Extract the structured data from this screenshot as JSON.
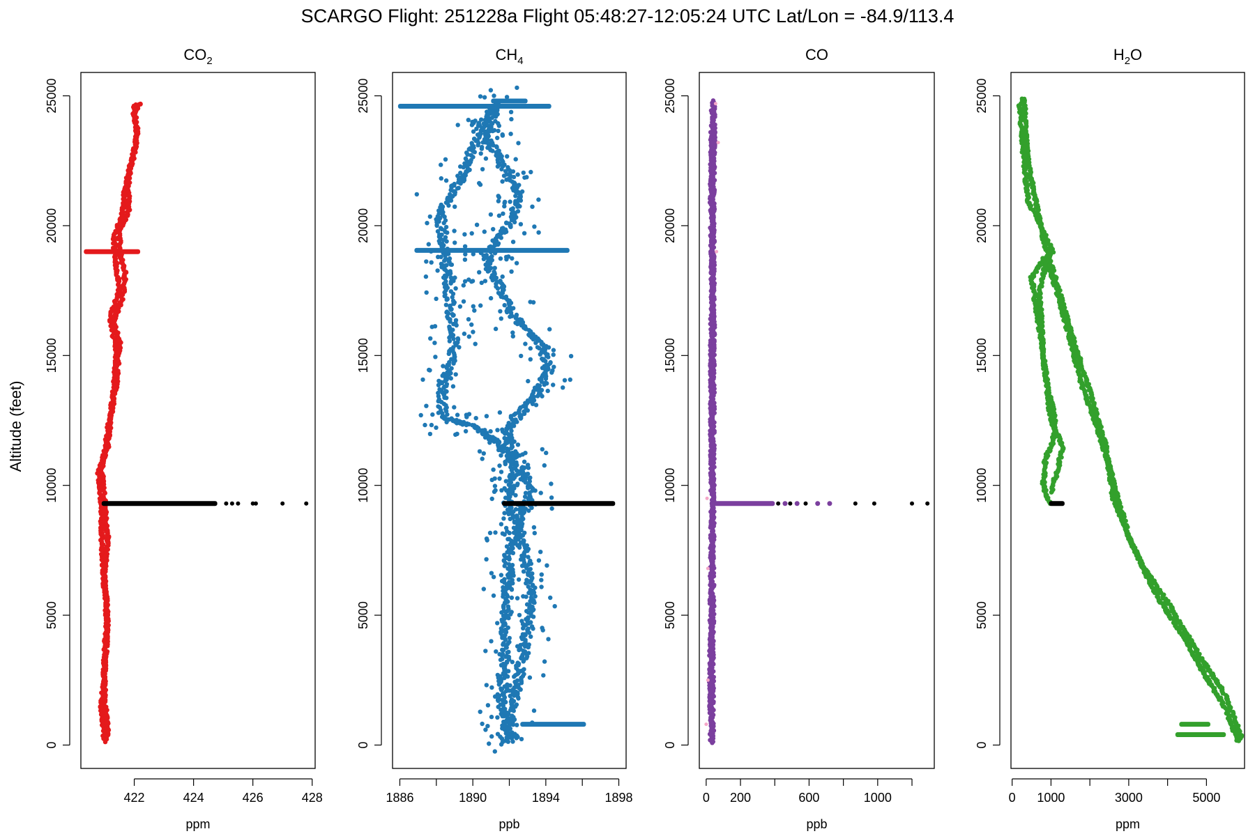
{
  "title": "SCARGO Flight: 251228a  Flight  05:48:27-12:05:24 UTC  Lat/Lon = -84.9/113.4",
  "ylabel": "Altitude (feet)",
  "chart_data": [
    {
      "type": "scatter",
      "title_main": "CO",
      "title_sub": "2",
      "xlabel": "ppm",
      "xlim": [
        420.2,
        428.1
      ],
      "ylim": [
        -900,
        25900
      ],
      "xticks": [
        422,
        424,
        426,
        428
      ],
      "xtick_labels": [
        "422",
        "424",
        "426",
        "428"
      ],
      "yticks": [
        0,
        5000,
        10000,
        15000,
        20000,
        25000
      ],
      "ytick_labels": [
        "0",
        "5000",
        "10000",
        "15000",
        "20000",
        "25000"
      ],
      "color": "#e41a1c",
      "profile": [
        {
          "x": 421.0,
          "y": 100
        },
        {
          "x": 420.9,
          "y": 1500
        },
        {
          "x": 421.0,
          "y": 3000
        },
        {
          "x": 421.1,
          "y": 4500
        },
        {
          "x": 421.0,
          "y": 6000
        },
        {
          "x": 420.9,
          "y": 8000
        },
        {
          "x": 420.9,
          "y": 9300
        },
        {
          "x": 420.8,
          "y": 10500
        },
        {
          "x": 421.1,
          "y": 11500
        },
        {
          "x": 421.2,
          "y": 12500
        },
        {
          "x": 421.4,
          "y": 14000
        },
        {
          "x": 421.5,
          "y": 15500
        },
        {
          "x": 421.3,
          "y": 16300
        },
        {
          "x": 421.6,
          "y": 17200
        },
        {
          "x": 421.7,
          "y": 18200
        },
        {
          "x": 421.5,
          "y": 19000
        },
        {
          "x": 421.5,
          "y": 19800
        },
        {
          "x": 421.8,
          "y": 20500
        },
        {
          "x": 421.8,
          "y": 21800
        },
        {
          "x": 422.0,
          "y": 22800
        },
        {
          "x": 422.1,
          "y": 23600
        },
        {
          "x": 422.0,
          "y": 24300
        },
        {
          "x": 422.2,
          "y": 24700
        },
        {
          "x": 422.0,
          "y": 24600
        },
        {
          "x": 422.1,
          "y": 23400
        },
        {
          "x": 421.9,
          "y": 22400
        },
        {
          "x": 421.7,
          "y": 21500
        },
        {
          "x": 421.6,
          "y": 20400
        },
        {
          "x": 421.3,
          "y": 19500
        },
        {
          "x": 421.4,
          "y": 18400
        },
        {
          "x": 421.5,
          "y": 17500
        },
        {
          "x": 421.2,
          "y": 16500
        },
        {
          "x": 421.4,
          "y": 15000
        },
        {
          "x": 421.3,
          "y": 13500
        },
        {
          "x": 421.1,
          "y": 12000
        },
        {
          "x": 420.9,
          "y": 10600
        },
        {
          "x": 421.0,
          "y": 9300
        },
        {
          "x": 421.1,
          "y": 8000
        },
        {
          "x": 421.0,
          "y": 6500
        },
        {
          "x": 421.1,
          "y": 5000
        },
        {
          "x": 421.0,
          "y": 3500
        },
        {
          "x": 421.0,
          "y": 2000
        },
        {
          "x": 421.1,
          "y": 600
        },
        {
          "x": 421.1,
          "y": 200
        }
      ],
      "bands": [
        {
          "y": 19000,
          "x_start": 420.3,
          "x_end": 422.2
        }
      ],
      "black_line": {
        "y": 9300,
        "x_start": 420.9,
        "x_end": 424.8
      },
      "black_points": [
        {
          "x": 425.1,
          "y": 9300
        },
        {
          "x": 425.3,
          "y": 9300
        },
        {
          "x": 425.5,
          "y": 9300
        },
        {
          "x": 426.0,
          "y": 9300
        },
        {
          "x": 426.1,
          "y": 9300
        },
        {
          "x": 427.0,
          "y": 9300
        },
        {
          "x": 427.8,
          "y": 9300
        }
      ]
    },
    {
      "type": "scatter",
      "title_main": "CH",
      "title_sub": "4",
      "xlabel": "ppb",
      "xlim": [
        1885.6,
        1898.4
      ],
      "ylim": [
        -900,
        25900
      ],
      "xticks": [
        1886,
        1888,
        1890,
        1892,
        1894,
        1896,
        1898
      ],
      "xtick_labels": [
        "1886",
        "",
        "1890",
        "",
        "1894",
        "",
        "1898"
      ],
      "yticks": [
        0,
        5000,
        10000,
        15000,
        20000,
        25000
      ],
      "ytick_labels": [
        "0",
        "5000",
        "10000",
        "15000",
        "20000",
        "25000"
      ],
      "color": "#1f78b4",
      "profile": [
        {
          "x": 1891.8,
          "y": 100
        },
        {
          "x": 1892.0,
          "y": 800
        },
        {
          "x": 1892.3,
          "y": 1800
        },
        {
          "x": 1892.6,
          "y": 3000
        },
        {
          "x": 1893.0,
          "y": 4500
        },
        {
          "x": 1893.2,
          "y": 6000
        },
        {
          "x": 1892.8,
          "y": 7500
        },
        {
          "x": 1892.3,
          "y": 8700
        },
        {
          "x": 1892.0,
          "y": 9300
        },
        {
          "x": 1892.3,
          "y": 10500
        },
        {
          "x": 1892.1,
          "y": 11500
        },
        {
          "x": 1891.9,
          "y": 12200
        },
        {
          "x": 1893.5,
          "y": 13500
        },
        {
          "x": 1894.2,
          "y": 14500
        },
        {
          "x": 1893.7,
          "y": 15500
        },
        {
          "x": 1892.2,
          "y": 16500
        },
        {
          "x": 1891.6,
          "y": 17500
        },
        {
          "x": 1890.7,
          "y": 18500
        },
        {
          "x": 1891.2,
          "y": 19300
        },
        {
          "x": 1892.3,
          "y": 20400
        },
        {
          "x": 1892.5,
          "y": 21300
        },
        {
          "x": 1891.5,
          "y": 22400
        },
        {
          "x": 1890.9,
          "y": 23300
        },
        {
          "x": 1891.0,
          "y": 24200
        },
        {
          "x": 1891.3,
          "y": 24700
        },
        {
          "x": 1890.4,
          "y": 23800
        },
        {
          "x": 1889.5,
          "y": 22000
        },
        {
          "x": 1888.2,
          "y": 20500
        },
        {
          "x": 1888.4,
          "y": 19300
        },
        {
          "x": 1888.6,
          "y": 18000
        },
        {
          "x": 1888.8,
          "y": 16500
        },
        {
          "x": 1889.0,
          "y": 15300
        },
        {
          "x": 1888.3,
          "y": 13800
        },
        {
          "x": 1888.4,
          "y": 12600
        },
        {
          "x": 1890.3,
          "y": 12200
        },
        {
          "x": 1891.5,
          "y": 11500
        },
        {
          "x": 1892.7,
          "y": 10600
        },
        {
          "x": 1893.2,
          "y": 9700
        },
        {
          "x": 1892.5,
          "y": 8600
        },
        {
          "x": 1892.0,
          "y": 7500
        },
        {
          "x": 1891.9,
          "y": 6000
        },
        {
          "x": 1891.8,
          "y": 4500
        },
        {
          "x": 1891.7,
          "y": 3000
        },
        {
          "x": 1891.6,
          "y": 1500
        },
        {
          "x": 1891.9,
          "y": 500
        },
        {
          "x": 1892.5,
          "y": 200
        }
      ],
      "bands": [
        {
          "y": 24600,
          "x_start": 1885.9,
          "x_end": 1894.3
        },
        {
          "y": 24800,
          "x_start": 1891.0,
          "x_end": 1893.0
        },
        {
          "y": 19050,
          "x_start": 1886.8,
          "x_end": 1895.3
        },
        {
          "y": 800,
          "x_start": 1892.6,
          "x_end": 1896.2
        }
      ],
      "black_line": {
        "y": 9300,
        "x_start": 1891.6,
        "x_end": 1897.8
      },
      "black_points": []
    },
    {
      "type": "scatter",
      "title_main": "CO",
      "title_sub": "",
      "xlabel": "ppb",
      "xlim": [
        -40,
        1330
      ],
      "ylim": [
        -900,
        25900
      ],
      "xticks": [
        0,
        200,
        400,
        600,
        800,
        1000,
        1200
      ],
      "xtick_labels": [
        "0",
        "200",
        "",
        "600",
        "",
        "1000",
        ""
      ],
      "yticks": [
        0,
        5000,
        10000,
        15000,
        20000,
        25000
      ],
      "ytick_labels": [
        "0",
        "5000",
        "10000",
        "15000",
        "20000",
        "25000"
      ],
      "color": "#7b3f9e",
      "profile": [
        {
          "x": 30,
          "y": 100
        },
        {
          "x": 25,
          "y": 3000
        },
        {
          "x": 30,
          "y": 6000
        },
        {
          "x": 35,
          "y": 9300
        },
        {
          "x": 30,
          "y": 12000
        },
        {
          "x": 30,
          "y": 15000
        },
        {
          "x": 35,
          "y": 18000
        },
        {
          "x": 30,
          "y": 21000
        },
        {
          "x": 35,
          "y": 24000
        },
        {
          "x": 40,
          "y": 24800
        },
        {
          "x": 45,
          "y": 24200
        },
        {
          "x": 40,
          "y": 21000
        },
        {
          "x": 42,
          "y": 17000
        },
        {
          "x": 40,
          "y": 13000
        },
        {
          "x": 40,
          "y": 9300
        },
        {
          "x": 38,
          "y": 5000
        },
        {
          "x": 35,
          "y": 1000
        },
        {
          "x": 38,
          "y": 100
        }
      ],
      "bands": [
        {
          "y": 9300,
          "x_start": 20,
          "x_end": 400
        }
      ],
      "black_line": {
        "y": 9300,
        "x_start": 0,
        "x_end": 0
      },
      "black_points": [
        {
          "x": 420,
          "y": 9300
        },
        {
          "x": 490,
          "y": 9300
        },
        {
          "x": 580,
          "y": 9300
        },
        {
          "x": 870,
          "y": 9300
        },
        {
          "x": 980,
          "y": 9300
        },
        {
          "x": 1200,
          "y": 9300
        },
        {
          "x": 1290,
          "y": 9300
        }
      ],
      "extra_points": [
        {
          "x": 460,
          "y": 9300,
          "color": "#7b3f9e"
        },
        {
          "x": 530,
          "y": 9300,
          "color": "#7b3f9e"
        },
        {
          "x": 650,
          "y": 9300,
          "color": "#7b3f9e"
        },
        {
          "x": 720,
          "y": 9300,
          "color": "#7b3f9e"
        }
      ],
      "outliers": {
        "color": "#f4a6c8",
        "points": [
          {
            "x": 0,
            "y": 800
          },
          {
            "x": 10,
            "y": 2500
          },
          {
            "x": 5,
            "y": 9500
          },
          {
            "x": 60,
            "y": 19000
          },
          {
            "x": 70,
            "y": 23200
          },
          {
            "x": 55,
            "y": 24700
          },
          {
            "x": 10,
            "y": 6800
          }
        ]
      }
    },
    {
      "type": "scatter",
      "title_main": "H",
      "title_sub": "2",
      "title_suffix": "O",
      "xlabel": "ppm",
      "xlim": [
        -30,
        5980
      ],
      "ylim": [
        -900,
        25900
      ],
      "xticks": [
        0,
        1000,
        2000,
        3000,
        4000,
        5000
      ],
      "xtick_labels": [
        "0",
        "1000",
        "",
        "3000",
        "",
        "5000"
      ],
      "yticks": [
        0,
        5000,
        10000,
        15000,
        20000,
        25000
      ],
      "ytick_labels": [
        "0",
        "5000",
        "10000",
        "15000",
        "20000",
        "25000"
      ],
      "color": "#33a02c",
      "profile": [
        {
          "x": 950,
          "y": 9300
        },
        {
          "x": 800,
          "y": 10000
        },
        {
          "x": 850,
          "y": 11000
        },
        {
          "x": 1050,
          "y": 11700
        },
        {
          "x": 1100,
          "y": 12500
        },
        {
          "x": 900,
          "y": 14000
        },
        {
          "x": 700,
          "y": 16000
        },
        {
          "x": 500,
          "y": 18000
        },
        {
          "x": 800,
          "y": 18700
        },
        {
          "x": 1050,
          "y": 19000
        },
        {
          "x": 400,
          "y": 21000
        },
        {
          "x": 250,
          "y": 23500
        },
        {
          "x": 200,
          "y": 24700
        },
        {
          "x": 300,
          "y": 24900
        },
        {
          "x": 400,
          "y": 22500
        },
        {
          "x": 800,
          "y": 19500
        },
        {
          "x": 1300,
          "y": 17000
        },
        {
          "x": 1600,
          "y": 15500
        },
        {
          "x": 2000,
          "y": 13600
        },
        {
          "x": 2400,
          "y": 11600
        },
        {
          "x": 2600,
          "y": 9500
        },
        {
          "x": 3300,
          "y": 7000
        },
        {
          "x": 4000,
          "y": 5500
        },
        {
          "x": 4800,
          "y": 3500
        },
        {
          "x": 5500,
          "y": 1900
        },
        {
          "x": 5900,
          "y": 300
        },
        {
          "x": 5800,
          "y": 150
        },
        {
          "x": 5500,
          "y": 1400
        },
        {
          "x": 5000,
          "y": 2600
        },
        {
          "x": 4400,
          "y": 4200
        },
        {
          "x": 3700,
          "y": 5800
        },
        {
          "x": 3000,
          "y": 8000
        },
        {
          "x": 2600,
          "y": 10200
        },
        {
          "x": 2200,
          "y": 12200
        },
        {
          "x": 1800,
          "y": 13800
        },
        {
          "x": 1500,
          "y": 15600
        },
        {
          "x": 1200,
          "y": 17200
        },
        {
          "x": 900,
          "y": 18700
        },
        {
          "x": 700,
          "y": 17500
        },
        {
          "x": 800,
          "y": 15000
        },
        {
          "x": 1000,
          "y": 12500
        },
        {
          "x": 1300,
          "y": 11500
        },
        {
          "x": 1150,
          "y": 10500
        },
        {
          "x": 1000,
          "y": 9700
        }
      ],
      "bands": [
        {
          "y": 800,
          "x_start": 4300,
          "x_end": 5100
        },
        {
          "y": 400,
          "x_start": 4200,
          "x_end": 5500
        }
      ],
      "black_line": {
        "y": 9300,
        "x_start": 950,
        "x_end": 1350
      },
      "black_points": []
    }
  ]
}
